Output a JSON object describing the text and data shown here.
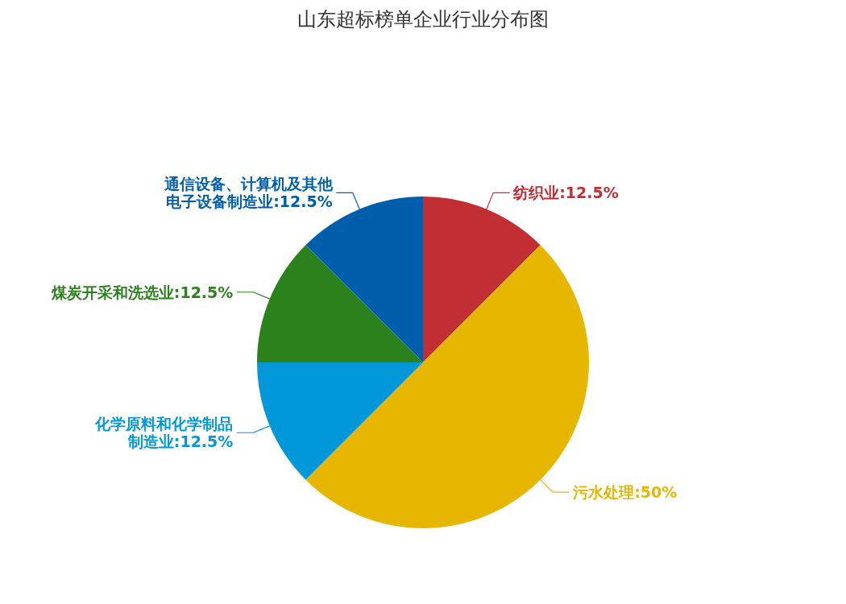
{
  "chart_data": {
    "type": "pie",
    "title": "山东超标榜单企业行业分布图",
    "categories": [
      "纺织业",
      "污水处理",
      "化学原料和化学制品制造业",
      "煤炭开采和洗选业",
      "通信设备、计算机及其他电子设备制造业"
    ],
    "values": [
      12.5,
      50,
      12.5,
      12.5,
      12.5
    ],
    "value_labels": [
      "12.5%",
      "50%",
      "12.5%",
      "12.5%",
      "12.5%"
    ],
    "colors": [
      "#c12e34",
      "#e6b600",
      "#0098d9",
      "#2b821d",
      "#005eaa"
    ]
  }
}
